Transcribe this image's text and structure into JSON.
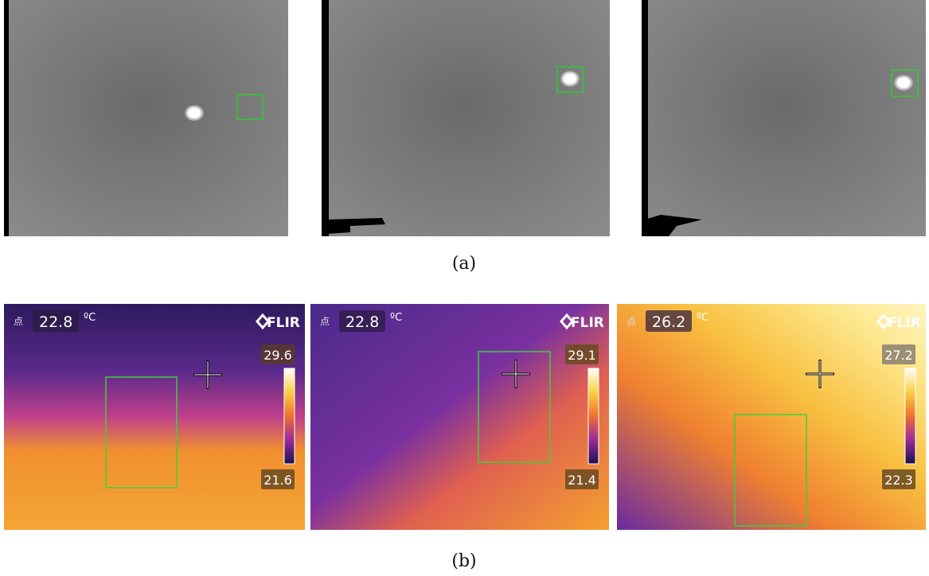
{
  "figure": {
    "caption_a": "(a)",
    "caption_b": "(b)",
    "thermal_panels": [
      {
        "point_label": "点",
        "temperature": "22.8",
        "unit": "ºC",
        "brand": "FLIR",
        "scale_max": "29.6",
        "scale_min": "21.6"
      },
      {
        "point_label": "点",
        "temperature": "22.8",
        "unit": "ºC",
        "brand": "FLIR",
        "scale_max": "29.1",
        "scale_min": "21.4"
      },
      {
        "point_label": "点",
        "temperature": "26.2",
        "unit": "ºC",
        "brand": "FLIR",
        "scale_max": "27.2",
        "scale_min": "22.3"
      }
    ]
  }
}
